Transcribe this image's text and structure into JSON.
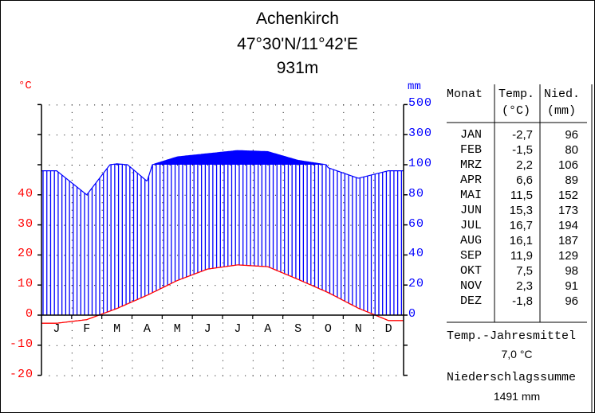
{
  "header": {
    "station": "Achenkirch",
    "coordinates": "47°30'N/11°42'E",
    "elevation": "931m"
  },
  "axes": {
    "left_unit": "°C",
    "right_unit": "mm",
    "left_ticks": [
      "40",
      "30",
      "20",
      "10",
      "0",
      "-10",
      "-20"
    ],
    "right_ticks": [
      "500",
      "300",
      "100",
      "80",
      "60",
      "40",
      "20",
      "0"
    ],
    "months": [
      "J",
      "F",
      "M",
      "A",
      "M",
      "J",
      "J",
      "A",
      "S",
      "O",
      "N",
      "D"
    ]
  },
  "table": {
    "headers": {
      "month": "Monat",
      "temp": "Temp.",
      "temp_unit": "(°C)",
      "precip": "Nied.",
      "precip_unit": "(mm)"
    },
    "rows": [
      {
        "month": "JAN",
        "temp": "-2,7",
        "precip": "96"
      },
      {
        "month": "FEB",
        "temp": "-1,5",
        "precip": "80"
      },
      {
        "month": "MRZ",
        "temp": "2,2",
        "precip": "106"
      },
      {
        "month": "APR",
        "temp": "6,6",
        "precip": "89"
      },
      {
        "month": "MAI",
        "temp": "11,5",
        "precip": "152"
      },
      {
        "month": "JUN",
        "temp": "15,3",
        "precip": "173"
      },
      {
        "month": "JUL",
        "temp": "16,7",
        "precip": "194"
      },
      {
        "month": "AUG",
        "temp": "16,1",
        "precip": "187"
      },
      {
        "month": "SEP",
        "temp": "11,9",
        "precip": "129"
      },
      {
        "month": "OKT",
        "temp": "7,5",
        "precip": "98"
      },
      {
        "month": "NOV",
        "temp": "2,3",
        "precip": "91"
      },
      {
        "month": "DEZ",
        "temp": "-1,8",
        "precip": "96"
      }
    ]
  },
  "summary": {
    "temp_label": "Temp.-Jahresmittel",
    "temp_value": "7,0 °C",
    "precip_label": "Niederschlagssumme",
    "precip_value": "1491 mm"
  },
  "colors": {
    "temperature": "#ff0000",
    "precipitation": "#0000ff",
    "axis": "#000000"
  },
  "chart_data": {
    "type": "line",
    "title": "Achenkirch 47°30'N/11°42'E 931m",
    "categories": [
      "JAN",
      "FEB",
      "MRZ",
      "APR",
      "MAI",
      "JUN",
      "JUL",
      "AUG",
      "SEP",
      "OKT",
      "NOV",
      "DEZ"
    ],
    "series": [
      {
        "name": "Temperatur (°C)",
        "axis": "left",
        "color": "#ff0000",
        "values": [
          -2.7,
          -1.5,
          2.2,
          6.6,
          11.5,
          15.3,
          16.7,
          16.1,
          11.9,
          7.5,
          2.3,
          -1.8
        ]
      },
      {
        "name": "Niederschlag (mm)",
        "axis": "right",
        "color": "#0000ff",
        "values": [
          96,
          80,
          106,
          89,
          152,
          173,
          194,
          187,
          129,
          98,
          91,
          96
        ]
      }
    ],
    "xlabel": "",
    "ylabel": "°C",
    "y2label": "mm",
    "ylim": [
      -20,
      50
    ],
    "y2_ticks": [
      0,
      20,
      40,
      60,
      80,
      100,
      300,
      500
    ],
    "annual_mean_temp": 7.0,
    "annual_precip_total": 1491,
    "grid": "dotted",
    "legend": "table-right"
  }
}
